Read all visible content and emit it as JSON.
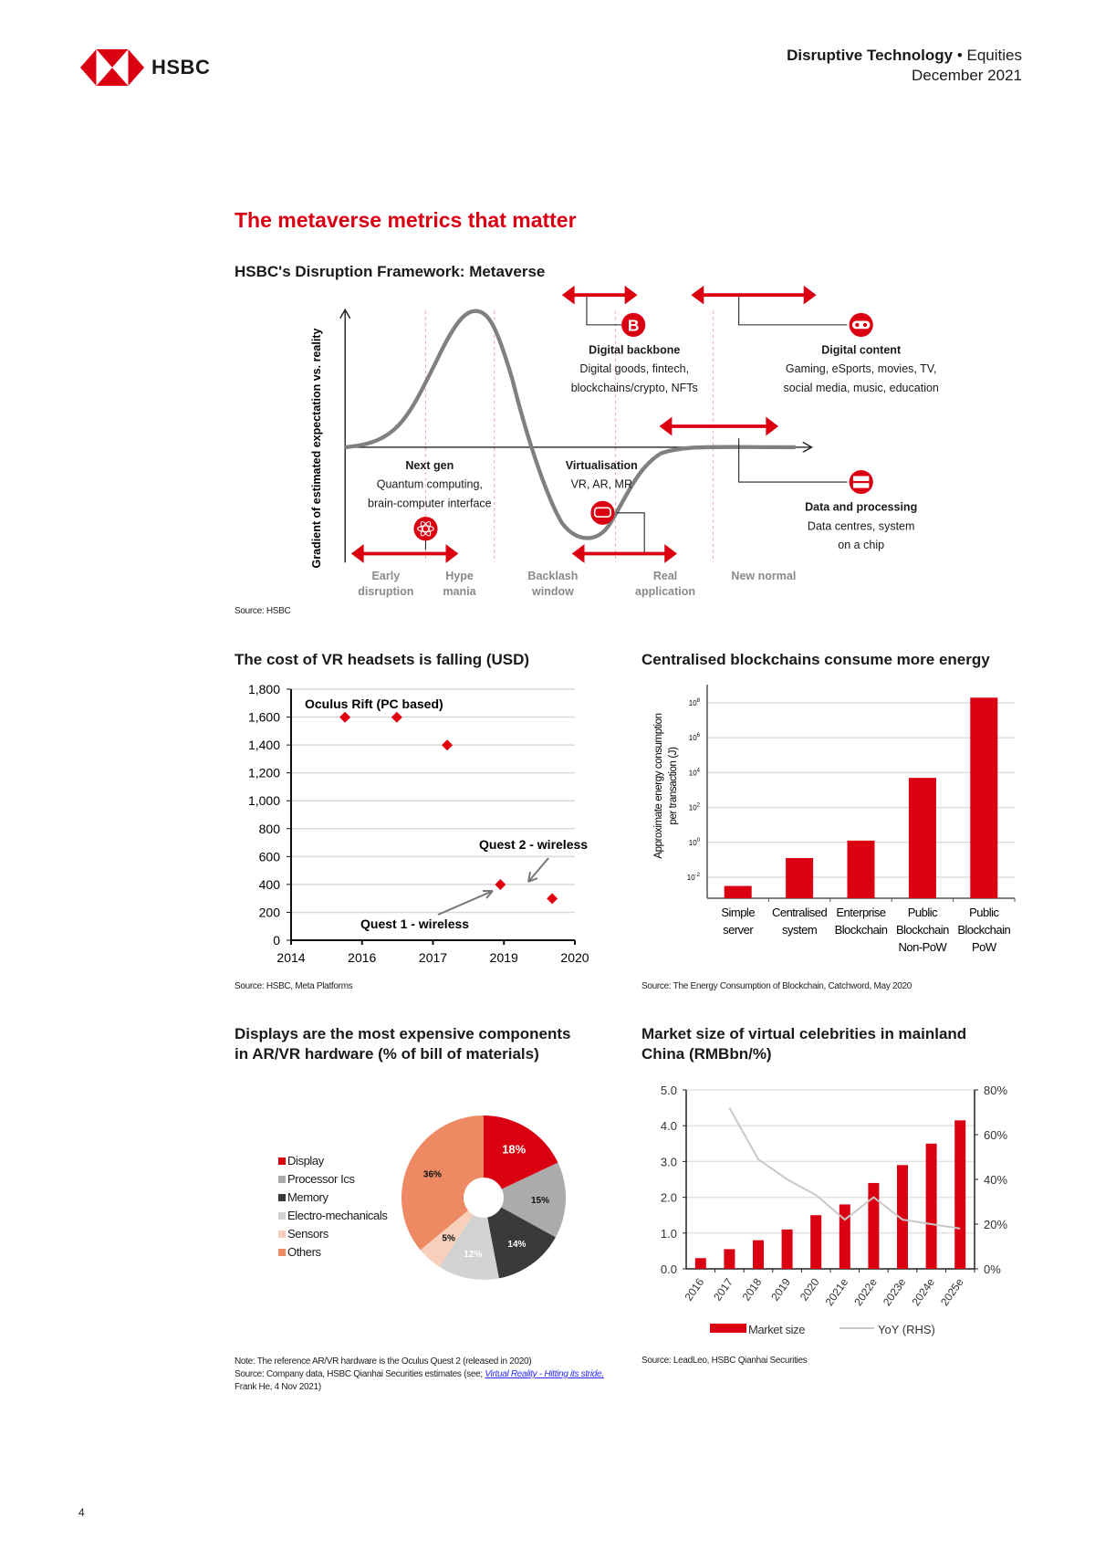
{
  "header": {
    "brand": "HSBC",
    "report_series": "Disruptive Technology",
    "bullet": "•",
    "section": "Equities",
    "date": "December 2021"
  },
  "page_title": "The metaverse metrics that matter",
  "framework": {
    "title": "HSBC's Disruption Framework: Metaverse",
    "y_axis_label": "Gradient of estimated expectation vs. reality",
    "stages": [
      {
        "l1": "Early",
        "l2": "disruption"
      },
      {
        "l1": "Hype",
        "l2": "mania"
      },
      {
        "l1": "Backlash",
        "l2": "window"
      },
      {
        "l1": "Real",
        "l2": "application"
      },
      {
        "l1": "New normal",
        "l2": ""
      }
    ],
    "themes": {
      "backbone": {
        "title": "Digital backbone",
        "line1": "Digital goods, fintech,",
        "line2": "blockchains/crypto, NFTs",
        "icon": "bitcoin-icon"
      },
      "content": {
        "title": "Digital content",
        "line1": "Gaming, eSports, movies, TV,",
        "line2": "social media, music, education",
        "icon": "gamepad-icon"
      },
      "nextgen": {
        "title": "Next gen",
        "line1": "Quantum computing,",
        "line2": "brain-computer interface",
        "icon": "atom-icon"
      },
      "virtual": {
        "title": "Virtualisation",
        "line1": "VR, AR, MR",
        "icon": "vr-headset-icon"
      },
      "data": {
        "title": "Data and processing",
        "line1": "Data centres, system",
        "line2": "on a chip",
        "icon": "server-icon"
      }
    },
    "source": "Source: HSBC"
  },
  "colors": {
    "red": "#db0011",
    "curve": "#808080"
  },
  "chart_data": [
    {
      "type": "scatter",
      "title": "The cost of VR headsets is falling (USD)",
      "categories": [
        "2014",
        "2016",
        "2017",
        "2019",
        "2020"
      ],
      "ylim": [
        0,
        1800
      ],
      "yticks": [
        "0",
        "200",
        "400",
        "600",
        "800",
        "1,000",
        "1,200",
        "1,400",
        "1,600",
        "1,800"
      ],
      "points": [
        {
          "x_index": 0.76,
          "y": 1599
        },
        {
          "x_index": 1.49,
          "y": 1599
        },
        {
          "x_index": 2.2,
          "y": 1399
        },
        {
          "x_index": 2.95,
          "y": 399
        },
        {
          "x_index": 3.68,
          "y": 299
        }
      ],
      "annotations": [
        "Oculus Rift (PC based)",
        "Quest 1 - wireless",
        "Quest 2 - wireless"
      ],
      "grid": true,
      "source": "Source: HSBC, Meta Platforms"
    },
    {
      "type": "bar",
      "title": "Centralised blockchains consume more energy",
      "ylabel_line1": "Approximate energy consumption",
      "ylabel_line2": "per transaction (J)",
      "yscale": "log10",
      "ytick_exponents": [
        -2,
        0,
        2,
        4,
        6,
        8
      ],
      "ytick_base": "10",
      "categories": [
        [
          "Simple",
          "server"
        ],
        [
          "Centralised",
          "system"
        ],
        [
          "Enterprise",
          "Blockchain"
        ],
        [
          "Public",
          "Blockchain",
          "Non-PoW"
        ],
        [
          "Public",
          "Blockchain",
          "PoW"
        ]
      ],
      "log10_values": [
        -2.5,
        -0.9,
        0.1,
        3.7,
        8.3
      ],
      "ylim_log10": [
        -3.2,
        9.2
      ],
      "grid": true,
      "source": "Source: The Energy Consumption of Blockchain, Catchword, May 2020"
    },
    {
      "type": "pie",
      "title_line1": "Displays are the most expensive components",
      "title_line2": "in AR/VR hardware (% of bill of materials)",
      "slices": [
        {
          "label": "Display",
          "value": 18,
          "text": "18%",
          "color": "#db0011",
          "text_color": "#ffffff"
        },
        {
          "label": "Processor Ics",
          "value": 15,
          "text": "15%",
          "color": "#ababab",
          "text_color": "#111111"
        },
        {
          "label": "Memory",
          "value": 14,
          "text": "14%",
          "color": "#3a3a3a",
          "text_color": "#ffffff"
        },
        {
          "label": "Electro-mechanicals",
          "value": 12,
          "text": "12%",
          "color": "#d2d2d2",
          "text_color": "#ffffff"
        },
        {
          "label": "Sensors",
          "value": 5,
          "text": "5%",
          "color": "#f8cfba",
          "text_color": "#111111"
        },
        {
          "label": "Others",
          "value": 36,
          "text": "36%",
          "color": "#ed8a64",
          "text_color": "#111111"
        }
      ],
      "legend_position": "left",
      "note": "Note: The reference AR/VR hardware is the Oculus Quest 2 (released in 2020)",
      "source_prefix": "Source: Company data, HSBC Qianhai Securities estimates (see;",
      "source_link": "Virtual Reality - Hitting its stride,",
      "source_suffix": "Frank He, 4 Nov 2021)"
    },
    {
      "type": "bar",
      "title_line1": "Market size of virtual celebrities in mainland",
      "title_line2": "China (RMBbn/%)",
      "categories": [
        "2016",
        "2017",
        "2018",
        "2019",
        "2020",
        "2021e",
        "2022e",
        "2023e",
        "2024e",
        "2025e"
      ],
      "series": [
        {
          "name": "Market size",
          "type": "bar",
          "axis": "left",
          "values": [
            0.3,
            0.55,
            0.8,
            1.1,
            1.5,
            1.8,
            2.4,
            2.9,
            3.5,
            4.15
          ],
          "color": "#db0011"
        },
        {
          "name": "YoY (RHS)",
          "type": "line",
          "axis": "right",
          "values": [
            null,
            72,
            49,
            40,
            33,
            22,
            32,
            22,
            20,
            18
          ],
          "color": "#c8c8c8"
        }
      ],
      "ylim": [
        0,
        5
      ],
      "yticks": [
        "0.0",
        "1.0",
        "2.0",
        "3.0",
        "4.0",
        "5.0"
      ],
      "y2lim": [
        0,
        80
      ],
      "y2ticks": [
        "0%",
        "20%",
        "40%",
        "60%",
        "80%"
      ],
      "legend_position": "bottom",
      "grid": true,
      "source": "Source: LeadLeo, HSBC Qianhai Securities"
    }
  ],
  "page_number": "4"
}
